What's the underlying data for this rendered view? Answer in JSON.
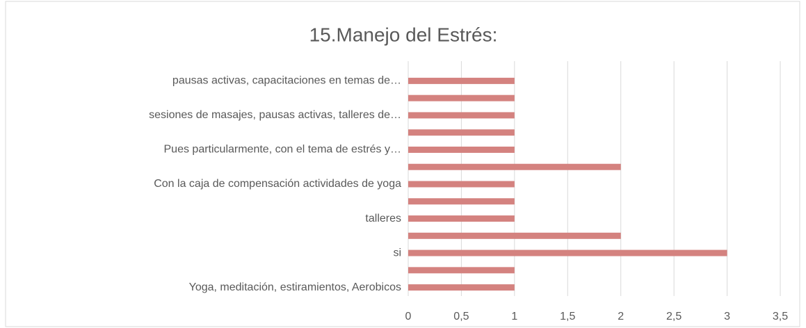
{
  "chart_data": {
    "type": "bar",
    "orientation": "horizontal",
    "title": "15.Manejo del Estrés:",
    "categories": [
      "Yoga, meditación, estiramientos, Aerobicos",
      null,
      "si",
      null,
      "talleres",
      null,
      "Con la caja de compensación actividades de yoga",
      null,
      "Pues particularmente, con el tema de estrés y…",
      null,
      "sesiones de masajes, pausas activas, talleres de…",
      null,
      "pausas activas, capacitaciones en temas de…"
    ],
    "values": [
      1,
      1,
      3,
      2,
      1,
      1,
      1,
      2,
      1,
      1,
      1,
      1,
      1
    ],
    "color": "#d4827f",
    "xlim": [
      0,
      3.5
    ],
    "xticks": [
      0,
      {
        "value": 0.5,
        "label": "0,5"
      },
      1,
      {
        "value": 1.5,
        "label": "1,5"
      },
      2,
      {
        "value": 2.5,
        "label": "2,5"
      },
      3,
      {
        "value": 3.5,
        "label": "3,5"
      }
    ],
    "grid": true
  }
}
